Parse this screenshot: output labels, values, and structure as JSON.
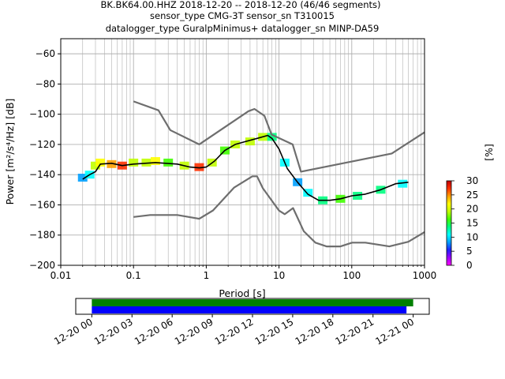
{
  "chart_data": [
    {
      "type": "heatmap",
      "description_free": true,
      "title_lines": [
        "BK.BK64.00.HHZ   2018-12-20 -- 2018-12-20  (46/46 segments)",
        "sensor_type CMG-3T sensor_sn T310015",
        "datalogger_type GuralpMinimus+ datalogger_sn MINP-DA59"
      ],
      "xlabel": "Period [s]",
      "ylabel": "Power [m²/s⁴/Hz] [dB]",
      "x_scale": "log",
      "xlim": [
        0.01,
        1000
      ],
      "ylim": [
        -200,
        -50
      ],
      "x_ticks": [
        0.01,
        0.1,
        1,
        10,
        100,
        1000
      ],
      "x_tick_labels": [
        "0.01",
        "0.1",
        "1",
        "10",
        "100",
        "1000"
      ],
      "y_ticks": [
        -200,
        -180,
        -160,
        -140,
        -120,
        -100,
        -80,
        -60
      ],
      "y_tick_labels": [
        "−200",
        "−180",
        "−160",
        "−140",
        "−120",
        "−100",
        "−80",
        "−60"
      ],
      "grid": true,
      "colorbar": {
        "label": "[%]",
        "range": [
          0,
          30
        ],
        "ticks": [
          0,
          5,
          10,
          15,
          20,
          25,
          30
        ],
        "tick_labels": [
          "0",
          "5",
          "10",
          "15",
          "20",
          "25",
          "30"
        ],
        "colormap": [
          "#ff00ff",
          "#9b00ff",
          "#2020ff",
          "#00a0ff",
          "#00ffff",
          "#00ff80",
          "#40ff00",
          "#c0ff00",
          "#ffff00",
          "#ffa000",
          "#ff3000",
          "#c00000"
        ]
      },
      "series": [
        {
          "name": "",
          "color": "#6e6e6e",
          "role": "new high noise model",
          "x": [
            0.1,
            0.22,
            0.32,
            0.8,
            3.8,
            4.6,
            6.3,
            7.9,
            15.4,
            20,
            354.8,
            1000
          ],
          "y": [
            -91.5,
            -97.4,
            -110.5,
            -120,
            -98,
            -96.5,
            -101,
            -113.5,
            -120,
            -138,
            -126,
            -112
          ]
        },
        {
          "name": "",
          "color": "#6e6e6e",
          "role": "new low noise model",
          "x": [
            0.1,
            0.17,
            0.4,
            0.8,
            1.24,
            2.4,
            4.3,
            5,
            6,
            10,
            12,
            15.6,
            21.9,
            31.6,
            45,
            70,
            101,
            154,
            328,
            600,
            1000
          ],
          "y": [
            -168,
            -166.7,
            -166.7,
            -169.2,
            -163.7,
            -148.6,
            -141.1,
            -141.1,
            -149,
            -163.8,
            -166.2,
            -162.1,
            -177.5,
            -185,
            -187.5,
            -187.5,
            -185,
            -185,
            -187.5,
            -184.4,
            -178
          ]
        },
        {
          "name": "",
          "color": "#000000",
          "role": "mean PSD",
          "x": [
            0.02,
            0.025,
            0.03,
            0.035,
            0.05,
            0.07,
            0.1,
            0.2,
            0.4,
            0.6,
            0.8,
            1,
            1.3,
            1.8,
            2.5,
            3.5,
            5,
            7,
            8,
            10,
            13,
            18,
            25,
            35,
            50,
            70,
            100,
            150,
            250,
            400,
            600
          ],
          "y": [
            -143,
            -140,
            -138,
            -133,
            -132.5,
            -134,
            -133,
            -132,
            -133,
            -135,
            -135.5,
            -135,
            -131,
            -124,
            -120,
            -118,
            -116,
            -114,
            -116,
            -123,
            -136,
            -145,
            -153,
            -157,
            -157,
            -156,
            -154,
            -153,
            -150,
            -146,
            -145
          ]
        }
      ],
      "histogram_cells": [
        {
          "x": 0.02,
          "y": -142,
          "pct": 8
        },
        {
          "x": 0.025,
          "y": -140,
          "pct": 10
        },
        {
          "x": 0.03,
          "y": -134,
          "pct": 20
        },
        {
          "x": 0.035,
          "y": -132,
          "pct": 22
        },
        {
          "x": 0.05,
          "y": -133,
          "pct": 25
        },
        {
          "x": 0.07,
          "y": -134,
          "pct": 28
        },
        {
          "x": 0.1,
          "y": -132,
          "pct": 20
        },
        {
          "x": 0.15,
          "y": -132,
          "pct": 18
        },
        {
          "x": 0.2,
          "y": -131,
          "pct": 22
        },
        {
          "x": 0.3,
          "y": -132,
          "pct": 15
        },
        {
          "x": 0.5,
          "y": -134,
          "pct": 20
        },
        {
          "x": 0.8,
          "y": -135,
          "pct": 26
        },
        {
          "x": 1.2,
          "y": -132,
          "pct": 18
        },
        {
          "x": 1.8,
          "y": -124,
          "pct": 16
        },
        {
          "x": 2.5,
          "y": -120,
          "pct": 18
        },
        {
          "x": 4,
          "y": -118,
          "pct": 20
        },
        {
          "x": 6,
          "y": -115,
          "pct": 18
        },
        {
          "x": 8,
          "y": -115,
          "pct": 14
        },
        {
          "x": 12,
          "y": -132,
          "pct": 10
        },
        {
          "x": 18,
          "y": -145,
          "pct": 8
        },
        {
          "x": 25,
          "y": -152,
          "pct": 12
        },
        {
          "x": 40,
          "y": -157,
          "pct": 14
        },
        {
          "x": 70,
          "y": -156,
          "pct": 15
        },
        {
          "x": 120,
          "y": -154,
          "pct": 14
        },
        {
          "x": 250,
          "y": -150,
          "pct": 13
        },
        {
          "x": 500,
          "y": -146,
          "pct": 12
        }
      ]
    },
    {
      "type": "bar",
      "role": "data coverage timeline",
      "x_tick_labels": [
        "12-20 00",
        "12-20 03",
        "12-20 06",
        "12-20 09",
        "12-20 12",
        "12-20 15",
        "12-20 18",
        "12-20 21",
        "12-21 00"
      ],
      "x_range_hours": [
        -1.2,
        25.2
      ],
      "series": [
        {
          "name": "",
          "color": "#008000",
          "start_hour": 0.0,
          "end_hour": 24.0
        },
        {
          "name": "",
          "color": "#0000ff",
          "start_hour": 0.0,
          "end_hour": 23.5
        }
      ]
    }
  ]
}
